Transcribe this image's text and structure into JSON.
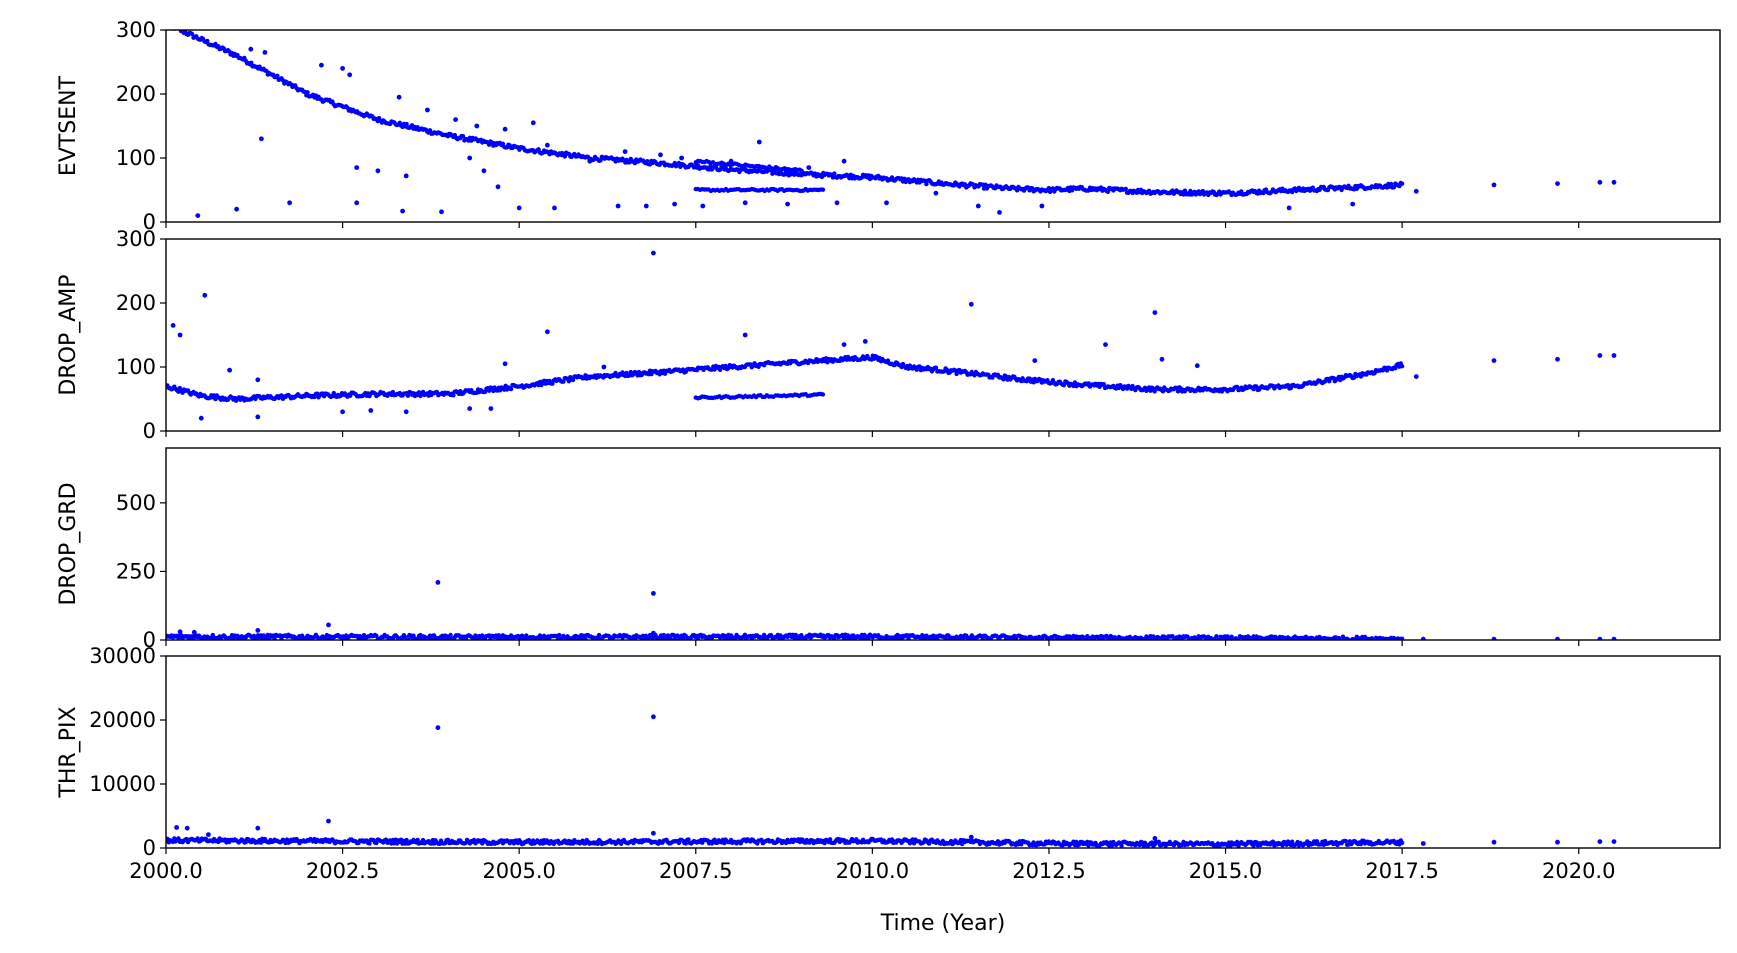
{
  "chart_data": {
    "type": "scatter",
    "shared_x": {
      "label": "Time (Year)",
      "range": [
        2000.0,
        2022.0
      ],
      "ticks": [
        2000.0,
        2002.5,
        2005.0,
        2007.5,
        2010.0,
        2012.5,
        2015.0,
        2017.5,
        2020.0
      ],
      "tick_labels": [
        "2000.0",
        "2002.5",
        "2005.0",
        "2007.5",
        "2010.0",
        "2012.5",
        "2015.0",
        "2017.5",
        "2020.0"
      ]
    },
    "marker_color": "#0000ff",
    "panels": [
      {
        "ylabel": "EVTSENT",
        "ylim": [
          0,
          300
        ],
        "yticks": [
          0,
          100,
          200,
          300
        ],
        "ytick_labels": [
          "0",
          "100",
          "200",
          "300"
        ],
        "trend": [
          [
            2000.0,
            310
          ],
          [
            2001.0,
            260
          ],
          [
            2002.0,
            200
          ],
          [
            2003.0,
            160
          ],
          [
            2004.0,
            135
          ],
          [
            2005.0,
            115
          ],
          [
            2006.0,
            100
          ],
          [
            2007.0,
            92
          ],
          [
            2008.0,
            82
          ],
          [
            2009.0,
            75
          ],
          [
            2010.0,
            70
          ],
          [
            2011.0,
            60
          ],
          [
            2012.0,
            52
          ],
          [
            2012.5,
            50
          ],
          [
            2013.0,
            52
          ],
          [
            2014.0,
            47
          ],
          [
            2015.0,
            45
          ],
          [
            2016.0,
            50
          ],
          [
            2017.0,
            55
          ],
          [
            2017.5,
            58
          ]
        ],
        "points": [
          [
            2000.45,
            10
          ],
          [
            2001.2,
            270
          ],
          [
            2001.4,
            265
          ],
          [
            2001.75,
            30
          ],
          [
            2002.2,
            245
          ],
          [
            2002.5,
            240
          ],
          [
            2002.6,
            230
          ],
          [
            2002.7,
            85
          ],
          [
            2003.0,
            80
          ],
          [
            2003.3,
            195
          ],
          [
            2003.7,
            175
          ],
          [
            2004.1,
            160
          ],
          [
            2004.4,
            150
          ],
          [
            2004.8,
            145
          ],
          [
            2005.2,
            155
          ],
          [
            2005.4,
            120
          ],
          [
            2005.6,
            105
          ],
          [
            2006.0,
            95
          ],
          [
            2006.5,
            110
          ],
          [
            2007.0,
            105
          ],
          [
            2007.3,
            100
          ],
          [
            2008.0,
            95
          ],
          [
            2008.4,
            125
          ],
          [
            2009.1,
            85
          ],
          [
            2009.6,
            95
          ],
          [
            2001.35,
            130
          ],
          [
            2003.4,
            72
          ],
          [
            2004.3,
            100
          ],
          [
            2004.5,
            80
          ],
          [
            2004.7,
            55
          ],
          [
            2005.0,
            22
          ],
          [
            2005.5,
            22
          ],
          [
            2006.4,
            25
          ],
          [
            2006.8,
            25
          ],
          [
            2007.2,
            28
          ],
          [
            2007.6,
            25
          ],
          [
            2008.2,
            30
          ],
          [
            2008.8,
            28
          ],
          [
            2009.5,
            30
          ],
          [
            2010.2,
            30
          ],
          [
            2010.9,
            45
          ],
          [
            2011.5,
            25
          ],
          [
            2011.8,
            15
          ],
          [
            2012.4,
            25
          ],
          [
            2015.9,
            22
          ],
          [
            2016.8,
            28
          ],
          [
            2017.7,
            48
          ],
          [
            2018.8,
            58
          ],
          [
            2019.7,
            60
          ],
          [
            2020.3,
            62
          ],
          [
            2020.5,
            62
          ],
          [
            2001.0,
            20
          ],
          [
            2002.7,
            30
          ],
          [
            2003.35,
            17
          ],
          [
            2003.9,
            16
          ]
        ]
      },
      {
        "ylabel": "DROP_AMP",
        "ylim": [
          0,
          300
        ],
        "yticks": [
          0,
          100,
          200,
          300
        ],
        "ytick_labels": [
          "0",
          "100",
          "200",
          "300"
        ],
        "trend": [
          [
            2000.0,
            70
          ],
          [
            2000.5,
            55
          ],
          [
            2001.0,
            50
          ],
          [
            2002.0,
            55
          ],
          [
            2003.0,
            58
          ],
          [
            2004.0,
            58
          ],
          [
            2005.0,
            70
          ],
          [
            2006.0,
            85
          ],
          [
            2007.0,
            92
          ],
          [
            2008.0,
            100
          ],
          [
            2009.0,
            108
          ],
          [
            2010.0,
            115
          ],
          [
            2010.5,
            100
          ],
          [
            2011.0,
            95
          ],
          [
            2012.0,
            82
          ],
          [
            2013.0,
            72
          ],
          [
            2014.0,
            65
          ],
          [
            2015.0,
            65
          ],
          [
            2016.0,
            70
          ],
          [
            2017.0,
            90
          ],
          [
            2017.5,
            103
          ]
        ],
        "points": [
          [
            2000.1,
            165
          ],
          [
            2000.2,
            150
          ],
          [
            2000.55,
            212
          ],
          [
            2001.3,
            80
          ],
          [
            2002.5,
            30
          ],
          [
            2002.9,
            32
          ],
          [
            2003.4,
            30
          ],
          [
            2004.3,
            35
          ],
          [
            2004.6,
            35
          ],
          [
            2004.8,
            105
          ],
          [
            2005.4,
            155
          ],
          [
            2006.2,
            100
          ],
          [
            2006.9,
            278
          ],
          [
            2008.2,
            150
          ],
          [
            2009.6,
            135
          ],
          [
            2009.9,
            140
          ],
          [
            2011.4,
            198
          ],
          [
            2012.3,
            110
          ],
          [
            2013.3,
            135
          ],
          [
            2014.0,
            185
          ],
          [
            2014.1,
            112
          ],
          [
            2014.6,
            102
          ],
          [
            2017.7,
            85
          ],
          [
            2018.8,
            110
          ],
          [
            2019.7,
            112
          ],
          [
            2020.3,
            118
          ],
          [
            2020.5,
            118
          ],
          [
            2000.5,
            20
          ],
          [
            2001.3,
            22
          ],
          [
            2000.9,
            95
          ]
        ]
      },
      {
        "ylabel": "DROP_GRD",
        "ylim": [
          0,
          700
        ],
        "yticks": [
          0,
          250,
          500
        ],
        "ytick_labels": [
          "0",
          "250",
          "500"
        ],
        "trend": [
          [
            2000.0,
            12
          ],
          [
            2005.0,
            10
          ],
          [
            2010.0,
            12
          ],
          [
            2012.5,
            8
          ],
          [
            2017.5,
            4
          ]
        ],
        "points": [
          [
            2000.2,
            30
          ],
          [
            2000.4,
            28
          ],
          [
            2001.3,
            35
          ],
          [
            2002.3,
            55
          ],
          [
            2003.85,
            210
          ],
          [
            2006.9,
            170
          ],
          [
            2006.9,
            25
          ],
          [
            2017.8,
            3
          ],
          [
            2018.8,
            3
          ],
          [
            2019.7,
            3
          ],
          [
            2020.3,
            3
          ],
          [
            2020.5,
            3
          ]
        ]
      },
      {
        "ylabel": "THR_PIX",
        "ylim": [
          0,
          30000
        ],
        "yticks": [
          0,
          10000,
          20000,
          30000
        ],
        "ytick_labels": [
          "0",
          "10000",
          "20000",
          "30000"
        ],
        "trend": [
          [
            2000.0,
            1200
          ],
          [
            2005.0,
            900
          ],
          [
            2010.0,
            1100
          ],
          [
            2012.5,
            700
          ],
          [
            2015.0,
            600
          ],
          [
            2017.5,
            900
          ]
        ],
        "points": [
          [
            2000.15,
            3200
          ],
          [
            2000.3,
            3100
          ],
          [
            2000.6,
            2100
          ],
          [
            2001.3,
            3100
          ],
          [
            2002.3,
            4200
          ],
          [
            2003.85,
            18800
          ],
          [
            2006.9,
            20500
          ],
          [
            2006.9,
            2300
          ],
          [
            2011.4,
            1700
          ],
          [
            2014.0,
            1500
          ],
          [
            2017.8,
            700
          ],
          [
            2018.8,
            900
          ],
          [
            2019.7,
            900
          ],
          [
            2020.3,
            1000
          ],
          [
            2020.5,
            1000
          ]
        ]
      }
    ]
  }
}
